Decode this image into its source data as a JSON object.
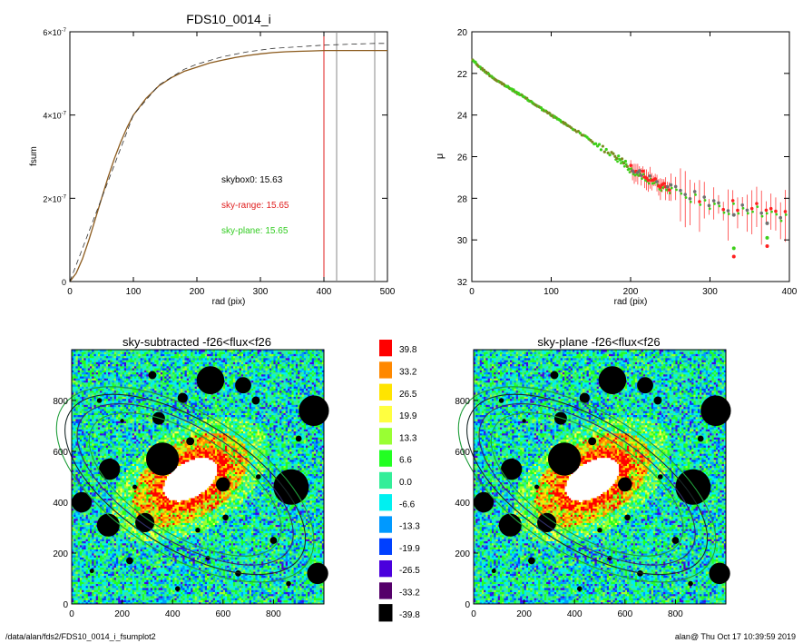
{
  "colors": {
    "cum_solid": "#8b5a1c",
    "cum_dashed": "#333333",
    "red_line": "#e02020",
    "grey_line": "#888888",
    "prof_red": "#ff2020",
    "prof_green": "#3ecf1a",
    "prof_grey": "#707070",
    "ellipse_dark": "#1a2a2a",
    "ellipse_green": "#1f9e3a",
    "ellipse_mid": "#30306a"
  },
  "chart_data": [
    {
      "type": "line",
      "title": "FDS10_0014_i",
      "xlabel": "rad (pix)",
      "ylabel": "fsum",
      "xlim": [
        0,
        500
      ],
      "ylim": [
        0,
        6e-07
      ],
      "xticks": [
        "0",
        "100",
        "200",
        "300",
        "400",
        "500"
      ],
      "yticks": [
        {
          "value": 0,
          "base": "0",
          "exp": ""
        },
        {
          "value": 2e-07,
          "base": "2×10",
          "exp": "-7"
        },
        {
          "value": 4e-07,
          "base": "4×10",
          "exp": "-7"
        },
        {
          "value": 6e-07,
          "base": "6×10",
          "exp": "-7"
        }
      ],
      "series": [
        {
          "style": "solid",
          "x": [
            0,
            10,
            20,
            30,
            40,
            50,
            60,
            70,
            80,
            90,
            100,
            120,
            140,
            160,
            180,
            200,
            220,
            240,
            260,
            280,
            300,
            320,
            340,
            360,
            380,
            400,
            420,
            440,
            460,
            480,
            500
          ],
          "y": [
            0,
            2e-08,
            5.5e-08,
            1e-07,
            1.5e-07,
            2e-07,
            2.5e-07,
            2.95e-07,
            3.35e-07,
            3.7e-07,
            4e-07,
            4.4e-07,
            4.7e-07,
            4.9e-07,
            5.05e-07,
            5.15e-07,
            5.25e-07,
            5.32e-07,
            5.38e-07,
            5.43e-07,
            5.47e-07,
            5.5e-07,
            5.52e-07,
            5.53e-07,
            5.54e-07,
            5.55e-07,
            5.55e-07,
            5.55e-07,
            5.55e-07,
            5.55e-07,
            5.55e-07
          ]
        },
        {
          "style": "dashed",
          "x": [
            0,
            100,
            140,
            180,
            200,
            240,
            280,
            320,
            360,
            400,
            440,
            480,
            500
          ],
          "y": [
            0,
            4e-07,
            4.72e-07,
            5.1e-07,
            5.22e-07,
            5.4e-07,
            5.52e-07,
            5.6e-07,
            5.64e-07,
            5.68e-07,
            5.7e-07,
            5.72e-07,
            5.72e-07
          ]
        }
      ],
      "vlines": [
        {
          "x": 400,
          "color": "red"
        },
        {
          "x": 420,
          "color": "grey"
        },
        {
          "x": 480,
          "color": "grey"
        }
      ],
      "annotations": [
        {
          "text": "skybox0: 15.63",
          "color": "black"
        },
        {
          "text": "sky-range: 15.65",
          "color": "red"
        },
        {
          "text": "sky-plane: 15.65",
          "color": "green"
        }
      ]
    },
    {
      "type": "scatter",
      "title": "",
      "xlabel": "rad (pix)",
      "ylabel": "μ",
      "xlim": [
        0,
        400
      ],
      "ylim": [
        32,
        20
      ],
      "xticks": [
        "0",
        "100",
        "200",
        "300",
        "400"
      ],
      "yticks": [
        "20",
        "22",
        "24",
        "26",
        "28",
        "30",
        "32"
      ],
      "profile_trend": [
        [
          0,
          21.3
        ],
        [
          10,
          21.7
        ],
        [
          30,
          22.3
        ],
        [
          60,
          23.0
        ],
        [
          100,
          24.0
        ],
        [
          150,
          25.2
        ],
        [
          200,
          26.5
        ],
        [
          250,
          27.6
        ],
        [
          300,
          28.2
        ],
        [
          350,
          28.5
        ],
        [
          400,
          28.7
        ]
      ],
      "outliers": [
        {
          "x": 330,
          "y": 30.8,
          "color": "red"
        },
        {
          "x": 330,
          "y": 30.4,
          "color": "green"
        },
        {
          "x": 330,
          "y": 28.8,
          "color": "grey"
        },
        {
          "x": 372,
          "y": 30.3,
          "color": "red"
        },
        {
          "x": 372,
          "y": 29.9,
          "color": "green"
        },
        {
          "x": 372,
          "y": 29.2,
          "color": "grey"
        }
      ]
    },
    {
      "type": "heatmap",
      "title": "sky-subtracted -f26<flux<f26",
      "xlim": [
        0,
        1000
      ],
      "ylim": [
        0,
        1000
      ],
      "xticks": [
        "0",
        "200",
        "400",
        "600",
        "800"
      ],
      "yticks": [
        "0",
        "200",
        "400",
        "600",
        "800"
      ]
    },
    {
      "type": "heatmap",
      "title": "sky-plane -f26<flux<f26",
      "xlim": [
        0,
        1000
      ],
      "ylim": [
        0,
        1000
      ],
      "xticks": [
        "0",
        "200",
        "400",
        "600",
        "800"
      ],
      "yticks": [
        "0",
        "200",
        "400",
        "600",
        "800"
      ]
    }
  ],
  "colorbar": {
    "entries": [
      {
        "label": "39.8",
        "color": "#ff0000"
      },
      {
        "label": "33.2",
        "color": "#ff8800"
      },
      {
        "label": "26.5",
        "color": "#ffe400"
      },
      {
        "label": "19.9",
        "color": "#ffff40"
      },
      {
        "label": "13.3",
        "color": "#99ff33"
      },
      {
        "label": "6.6",
        "color": "#22ff22"
      },
      {
        "label": "0.0",
        "color": "#33ee99"
      },
      {
        "label": "-6.6",
        "color": "#00f0f0"
      },
      {
        "label": "-13.3",
        "color": "#0099ff"
      },
      {
        "label": "-19.9",
        "color": "#0040ff"
      },
      {
        "label": "-26.5",
        "color": "#4a00dd"
      },
      {
        "label": "-33.2",
        "color": "#55006a"
      },
      {
        "label": "-39.8",
        "color": "#000000"
      }
    ]
  },
  "footer": {
    "path": "/data/alan/fds2/FDS10_0014_i_fsumplot2",
    "stamp": "alan@  Thu Oct 17 10:39:59 2019"
  }
}
